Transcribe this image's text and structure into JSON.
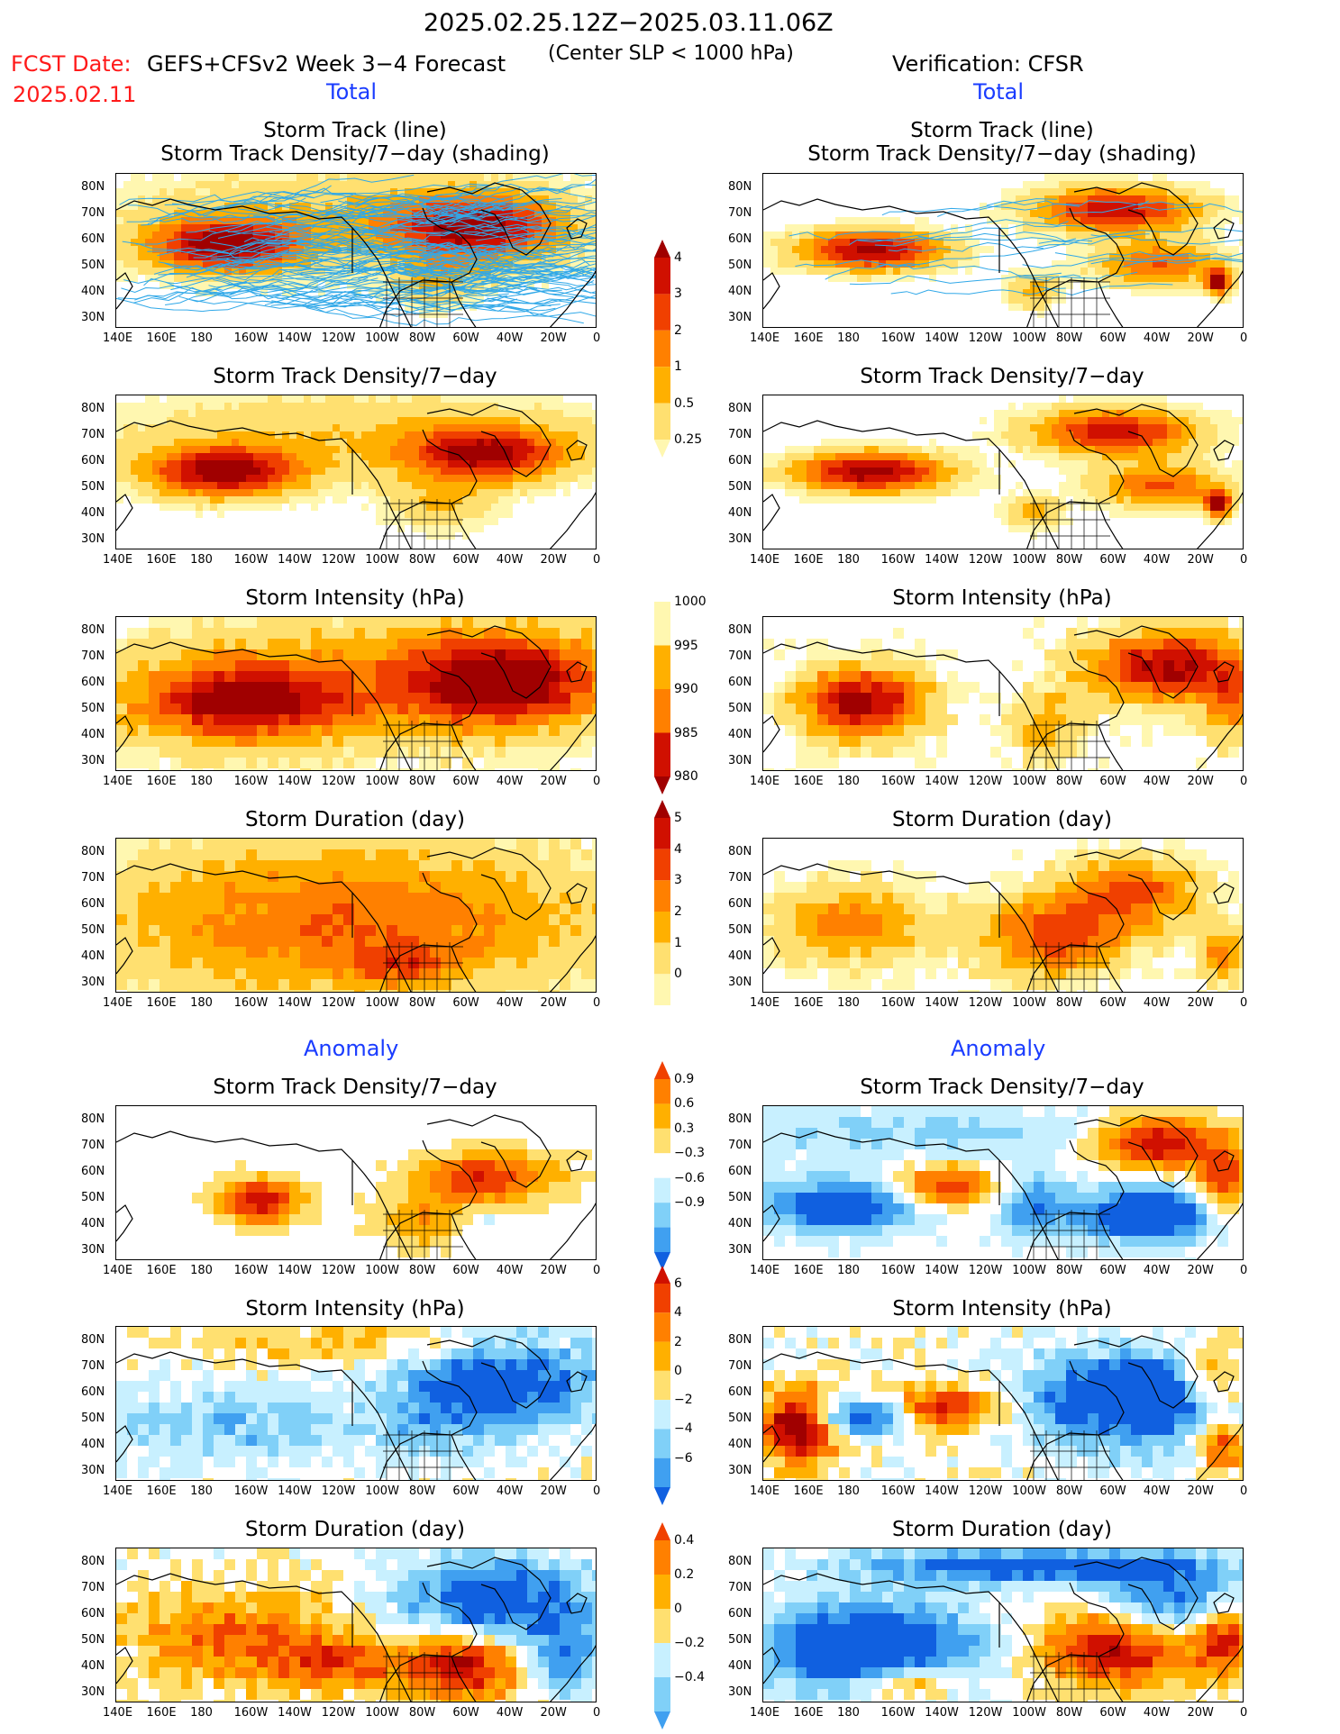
{
  "header": {
    "date_range": "2025.02.25.12Z−2025.03.11.06Z",
    "forecast_label": "FCST Date:",
    "forecast_model": "GEFS+CFSv2 Week 3−4 Forecast",
    "center_note": "(Center SLP < 1000 hPa)",
    "verification": "Verification: CFSR",
    "forecast_date": "2025.02.11"
  },
  "sections": {
    "total": "Total",
    "anomaly": "Anomaly"
  },
  "panel_titles": {
    "track_line": "Storm Track (line)",
    "track_density_shading": "Storm Track Density/7−day (shading)",
    "track_density": "Storm Track Density/7−day",
    "intensity": "Storm Intensity (hPa)",
    "duration": "Storm Duration (day)"
  },
  "axes": {
    "lat_labels": [
      "80N",
      "70N",
      "60N",
      "50N",
      "40N",
      "30N"
    ],
    "lon_labels": [
      "140E",
      "160E",
      "180",
      "160W",
      "140W",
      "120W",
      "100W",
      "80W",
      "60W",
      "40W",
      "20W",
      "0"
    ]
  },
  "colorbars": {
    "density_total": [
      "4",
      "3",
      "2",
      "1",
      "0.5",
      "0.25"
    ],
    "intensity_total": [
      "1000",
      "995",
      "990",
      "985",
      "980"
    ],
    "duration_total": [
      "5",
      "4",
      "3",
      "2",
      "1",
      "0"
    ],
    "density_anom": [
      "0.9",
      "0.6",
      "0.3",
      "−0.3",
      "−0.6",
      "−0.9"
    ],
    "intensity_anom": [
      "6",
      "4",
      "2",
      "0",
      "−2",
      "−4",
      "−6"
    ],
    "duration_anom": [
      "0.4",
      "0.2",
      "0",
      "−0.2",
      "−0.4"
    ]
  },
  "colors": {
    "warm": [
      "#fff7b0",
      "#ffe070",
      "#ffb000",
      "#ff8000",
      "#f04000",
      "#d01000",
      "#a00000"
    ],
    "cool": [
      "#c8f0ff",
      "#80d0f8",
      "#40a0f0",
      "#1060e0"
    ],
    "track_line": "#30a8e8",
    "title_red": "#ff1a1a",
    "section_blue": "#1a3cff"
  }
}
